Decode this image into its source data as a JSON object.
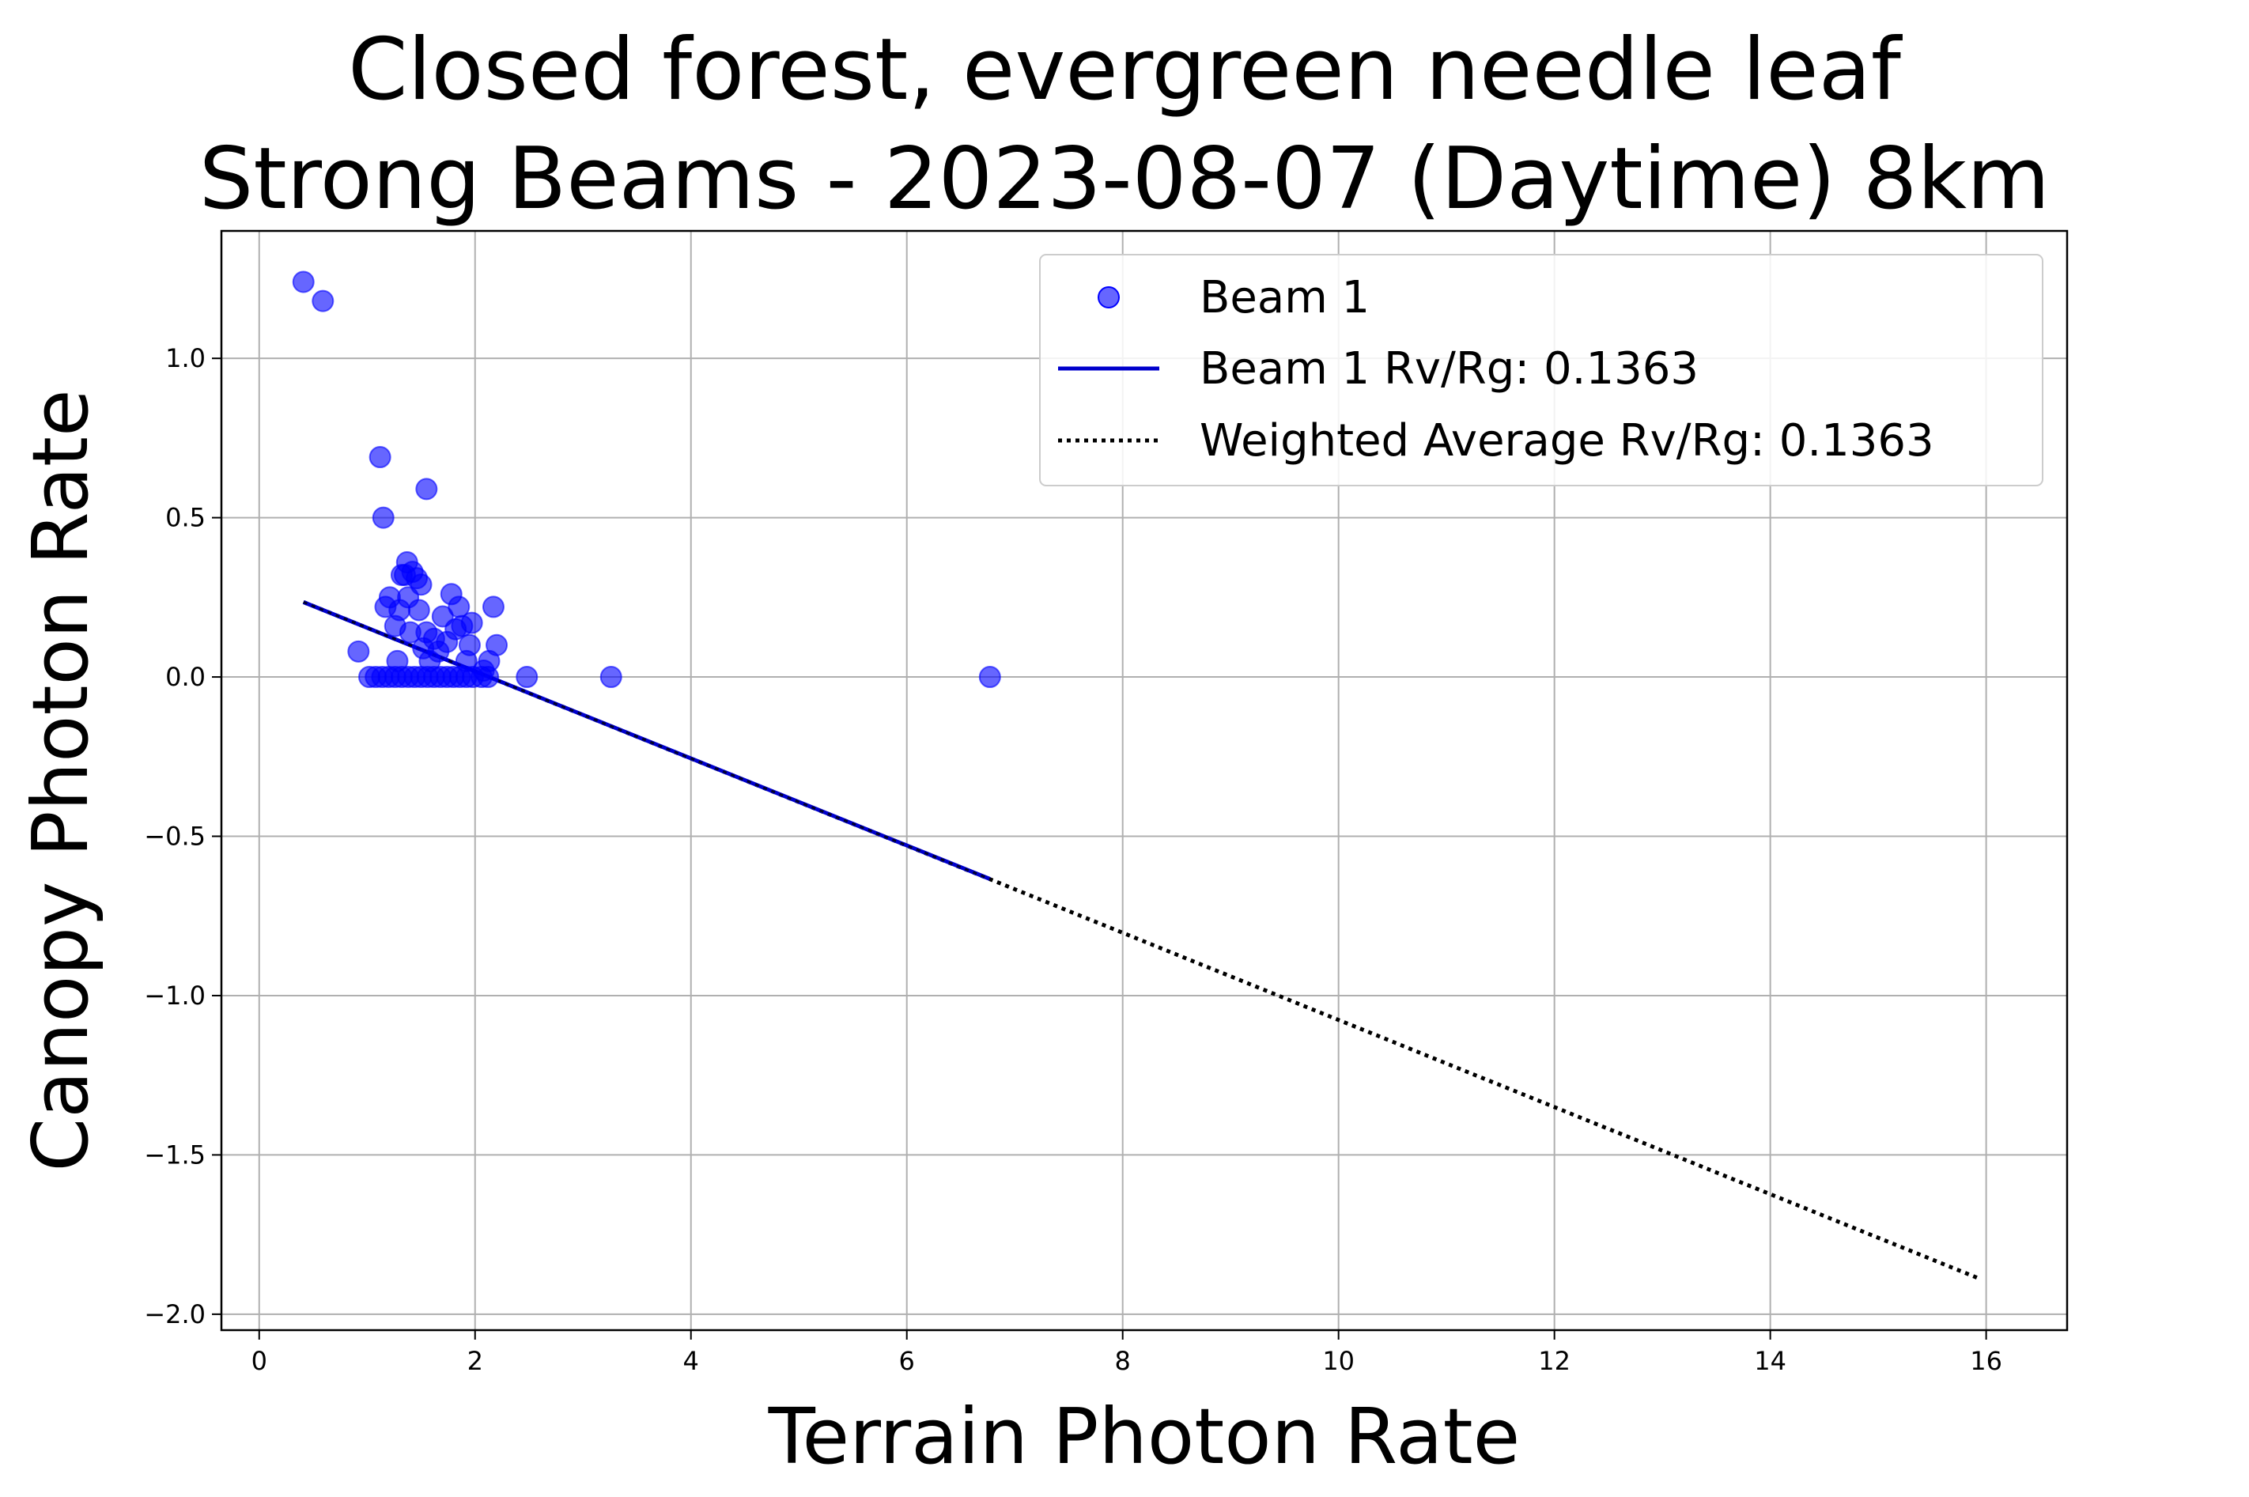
{
  "chart_data": {
    "type": "scatter",
    "title": "Closed forest, evergreen needle leaf",
    "subtitle": "Strong Beams - 2023-08-07 (Daytime) 8km",
    "xlabel": "Terrain Photon Rate",
    "ylabel": "Canopy Photon Rate",
    "xlim": [
      -0.35,
      16.75
    ],
    "ylim": [
      -2.05,
      1.4
    ],
    "x_ticks": [
      0,
      2,
      4,
      6,
      8,
      10,
      12,
      14,
      16
    ],
    "x_tick_labels": [
      "0",
      "2",
      "4",
      "6",
      "8",
      "10",
      "12",
      "14",
      "16"
    ],
    "y_ticks": [
      -2.0,
      -1.5,
      -1.0,
      -0.5,
      0.0,
      0.5,
      1.0
    ],
    "y_tick_labels": [
      "−2.0",
      "−1.5",
      "−1.0",
      "−0.5",
      "0.0",
      "0.5",
      "1.0"
    ],
    "grid": true,
    "legend_position": "top-right",
    "legend": {
      "scatter_label": "Beam 1",
      "fit_label": "Beam 1 Rv/Rg: 0.1363",
      "avg_label": "Weighted Average Rv/Rg: 0.1363"
    },
    "colors": {
      "scatter": "#0000ff",
      "fit": "#0000cc",
      "avg": "#000000"
    },
    "series": [
      {
        "name": "Beam 1",
        "points": [
          [
            0.41,
            1.24
          ],
          [
            0.59,
            1.18
          ],
          [
            1.12,
            0.69
          ],
          [
            1.15,
            0.5
          ],
          [
            1.55,
            0.59
          ],
          [
            0.92,
            0.08
          ],
          [
            1.02,
            0.0
          ],
          [
            1.08,
            0.0
          ],
          [
            1.14,
            0.0
          ],
          [
            1.2,
            0.0
          ],
          [
            1.26,
            0.0
          ],
          [
            1.32,
            0.0
          ],
          [
            1.38,
            0.0
          ],
          [
            1.44,
            0.0
          ],
          [
            1.5,
            0.0
          ],
          [
            1.56,
            0.0
          ],
          [
            1.62,
            0.0
          ],
          [
            1.68,
            0.0
          ],
          [
            1.74,
            0.0
          ],
          [
            1.8,
            0.0
          ],
          [
            1.86,
            0.0
          ],
          [
            1.92,
            0.0
          ],
          [
            1.98,
            0.0
          ],
          [
            2.06,
            0.0
          ],
          [
            2.12,
            0.0
          ],
          [
            2.48,
            0.0
          ],
          [
            3.26,
            0.0
          ],
          [
            6.77,
            0.0
          ],
          [
            1.17,
            0.22
          ],
          [
            1.21,
            0.25
          ],
          [
            1.26,
            0.16
          ],
          [
            1.28,
            0.05
          ],
          [
            1.3,
            0.21
          ],
          [
            1.32,
            0.32
          ],
          [
            1.35,
            0.32
          ],
          [
            1.37,
            0.36
          ],
          [
            1.38,
            0.25
          ],
          [
            1.4,
            0.14
          ],
          [
            1.42,
            0.33
          ],
          [
            1.46,
            0.31
          ],
          [
            1.48,
            0.21
          ],
          [
            1.5,
            0.29
          ],
          [
            1.52,
            0.09
          ],
          [
            1.55,
            0.14
          ],
          [
            1.58,
            0.05
          ],
          [
            1.62,
            0.12
          ],
          [
            1.66,
            0.08
          ],
          [
            1.7,
            0.19
          ],
          [
            1.74,
            0.11
          ],
          [
            1.78,
            0.26
          ],
          [
            1.82,
            0.15
          ],
          [
            1.85,
            0.22
          ],
          [
            1.88,
            0.16
          ],
          [
            1.92,
            0.05
          ],
          [
            1.95,
            0.1
          ],
          [
            1.97,
            0.17
          ],
          [
            2.08,
            0.02
          ],
          [
            2.13,
            0.05
          ],
          [
            2.17,
            0.22
          ],
          [
            2.2,
            0.1
          ]
        ]
      }
    ],
    "fit_line": {
      "name": "Beam 1 Rv/Rg: 0.1363",
      "x": [
        0.41,
        6.77
      ],
      "y": [
        0.235,
        -0.634
      ]
    },
    "avg_line": {
      "name": "Weighted Average Rv/Rg: 0.1363",
      "x": [
        0.41,
        15.95
      ],
      "y": [
        0.235,
        -1.89
      ]
    }
  }
}
